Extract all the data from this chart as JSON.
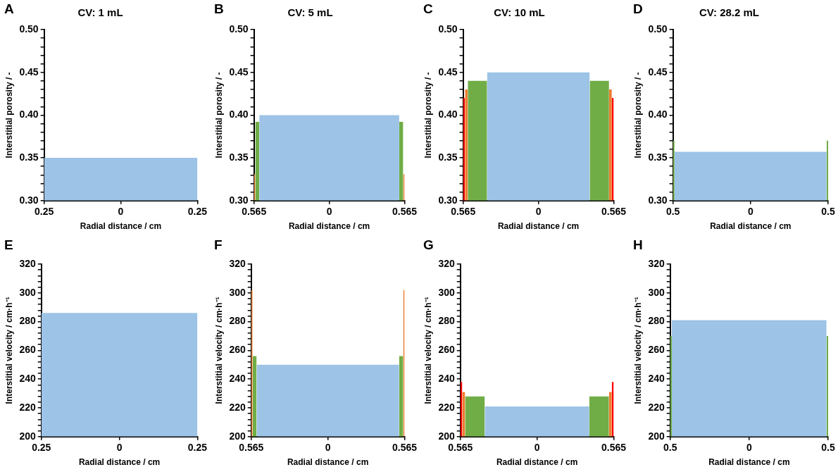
{
  "chart_data": [
    {
      "type": "area",
      "title": "CV: 1 mL",
      "annotations": [
        "A"
      ],
      "xlabel": "Radial distance / cm",
      "ylabel": "Interstitial porosity / -",
      "xlim": [
        -0.25,
        0.25
      ],
      "xticks": [
        {
          "value": -0.25,
          "label": "0.25"
        },
        0,
        0.25
      ],
      "ylim": [
        0.3,
        0.5
      ],
      "yticks": [
        {
          "value": 0.3,
          "label": "0.30"
        },
        {
          "value": 0.31,
          "label": null
        },
        {
          "value": 0.32,
          "label": null
        },
        {
          "value": 0.33,
          "label": null
        },
        {
          "value": 0.34,
          "label": null
        },
        0.35,
        {
          "value": 0.36,
          "label": null
        },
        {
          "value": 0.37,
          "label": null
        },
        {
          "value": 0.38,
          "label": null
        },
        {
          "value": 0.39,
          "label": null
        },
        {
          "value": 0.4,
          "label": "0.40"
        },
        {
          "value": 0.41,
          "label": null
        },
        {
          "value": 0.42,
          "label": null
        },
        {
          "value": 0.43,
          "label": null
        },
        {
          "value": 0.44,
          "label": null
        },
        0.45,
        {
          "value": 0.46,
          "label": null
        },
        {
          "value": 0.47,
          "label": null
        },
        {
          "value": 0.48,
          "label": null
        },
        {
          "value": 0.49,
          "label": null
        },
        {
          "value": 0.5,
          "label": "0.50"
        }
      ],
      "series": [
        {
          "color": "#9dc3e6",
          "x": [
            -0.25,
            0.25
          ],
          "values": [
            0.35,
            0.35
          ]
        }
      ]
    },
    {
      "type": "area",
      "title": "CV: 5 mL",
      "annotations": [
        "B"
      ],
      "xlabel": "Radial distance / cm",
      "ylabel": "Interstitial porosity / -",
      "xlim": [
        -0.565,
        0.565
      ],
      "xticks": [
        {
          "value": -0.565,
          "label": "0.565"
        },
        0,
        0.565
      ],
      "ylim": [
        0.3,
        0.5
      ],
      "yticks": [
        {
          "value": 0.3,
          "label": "0.30"
        },
        {
          "value": 0.31,
          "label": null
        },
        {
          "value": 0.32,
          "label": null
        },
        {
          "value": 0.33,
          "label": null
        },
        {
          "value": 0.34,
          "label": null
        },
        0.35,
        {
          "value": 0.36,
          "label": null
        },
        {
          "value": 0.37,
          "label": null
        },
        {
          "value": 0.38,
          "label": null
        },
        {
          "value": 0.39,
          "label": null
        },
        {
          "value": 0.4,
          "label": "0.40"
        },
        {
          "value": 0.41,
          "label": null
        },
        {
          "value": 0.42,
          "label": null
        },
        {
          "value": 0.43,
          "label": null
        },
        {
          "value": 0.44,
          "label": null
        },
        0.45,
        {
          "value": 0.46,
          "label": null
        },
        {
          "value": 0.47,
          "label": null
        },
        {
          "value": 0.48,
          "label": null
        },
        {
          "value": 0.49,
          "label": null
        },
        {
          "value": 0.5,
          "label": "0.50"
        }
      ],
      "series": [
        {
          "color": "#ed7d31",
          "x": [
            -0.565,
            -0.555,
            0,
            0.555,
            0.565
          ],
          "values": [
            0.331,
            0.331,
            null,
            0.331,
            0.331
          ]
        },
        {
          "color": "#70ad47",
          "x": [
            -0.555,
            -0.525,
            0,
            0.525,
            0.555
          ],
          "values": [
            0.392,
            0.392,
            null,
            0.392,
            0.392
          ]
        },
        {
          "color": "#9dc3e6",
          "x": [
            -0.525,
            0.525
          ],
          "values": [
            0.4,
            0.4
          ]
        }
      ]
    },
    {
      "type": "area",
      "title": "CV: 10 mL",
      "annotations": [
        "C"
      ],
      "xlabel": "Radial distance / cm",
      "ylabel": "Interstitial porosity / -",
      "xlim": [
        -0.565,
        0.565
      ],
      "xticks": [
        {
          "value": -0.565,
          "label": "0.565"
        },
        0,
        0.565
      ],
      "ylim": [
        0.3,
        0.5
      ],
      "yticks": [
        {
          "value": 0.3,
          "label": "0.30"
        },
        {
          "value": 0.31,
          "label": null
        },
        {
          "value": 0.32,
          "label": null
        },
        {
          "value": 0.33,
          "label": null
        },
        {
          "value": 0.34,
          "label": null
        },
        0.35,
        {
          "value": 0.36,
          "label": null
        },
        {
          "value": 0.37,
          "label": null
        },
        {
          "value": 0.38,
          "label": null
        },
        {
          "value": 0.39,
          "label": null
        },
        {
          "value": 0.4,
          "label": "0.40"
        },
        {
          "value": 0.41,
          "label": null
        },
        {
          "value": 0.42,
          "label": null
        },
        {
          "value": 0.43,
          "label": null
        },
        {
          "value": 0.44,
          "label": null
        },
        0.45,
        {
          "value": 0.46,
          "label": null
        },
        {
          "value": 0.47,
          "label": null
        },
        {
          "value": 0.48,
          "label": null
        },
        {
          "value": 0.49,
          "label": null
        },
        {
          "value": 0.5,
          "label": "0.50"
        }
      ],
      "series": [
        {
          "color": "#ff0000",
          "x": [
            -0.565,
            -0.551,
            0,
            0.551,
            0.565
          ],
          "values": [
            0.42,
            0.42,
            null,
            0.42,
            0.42
          ]
        },
        {
          "color": "#ed7d31",
          "x": [
            -0.551,
            -0.53,
            0,
            0.53,
            0.551
          ],
          "values": [
            0.43,
            0.43,
            null,
            0.43,
            0.43
          ]
        },
        {
          "color": "#70ad47",
          "x": [
            -0.53,
            -0.385,
            0,
            0.385,
            0.53
          ],
          "values": [
            0.44,
            0.44,
            null,
            0.44,
            0.44
          ]
        },
        {
          "color": "#9dc3e6",
          "x": [
            -0.385,
            0.385
          ],
          "values": [
            0.45,
            0.45
          ]
        }
      ]
    },
    {
      "type": "area",
      "title": "CV: 28.2 mL",
      "annotations": [
        "D"
      ],
      "xlabel": "Radial distance / cm",
      "ylabel": "Interstitial porosity / -",
      "xlim": [
        -0.5,
        0.5
      ],
      "xticks": [
        {
          "value": -0.5,
          "label": "0.5"
        },
        0,
        0.5
      ],
      "ylim": [
        0.3,
        0.5
      ],
      "yticks": [
        {
          "value": 0.3,
          "label": "0.30"
        },
        {
          "value": 0.31,
          "label": null
        },
        {
          "value": 0.32,
          "label": null
        },
        {
          "value": 0.33,
          "label": null
        },
        {
          "value": 0.34,
          "label": null
        },
        0.35,
        {
          "value": 0.36,
          "label": null
        },
        {
          "value": 0.37,
          "label": null
        },
        {
          "value": 0.38,
          "label": null
        },
        {
          "value": 0.39,
          "label": null
        },
        {
          "value": 0.4,
          "label": "0.40"
        },
        {
          "value": 0.41,
          "label": null
        },
        {
          "value": 0.42,
          "label": null
        },
        {
          "value": 0.43,
          "label": null
        },
        {
          "value": 0.44,
          "label": null
        },
        0.45,
        {
          "value": 0.46,
          "label": null
        },
        {
          "value": 0.47,
          "label": null
        },
        {
          "value": 0.48,
          "label": null
        },
        {
          "value": 0.49,
          "label": null
        },
        {
          "value": 0.5,
          "label": "0.50"
        }
      ],
      "series": [
        {
          "color": "#70ad47",
          "x": [
            -0.5,
            -0.49,
            0,
            0.49,
            0.5
          ],
          "values": [
            0.37,
            0.37,
            null,
            0.37,
            0.37
          ]
        },
        {
          "color": "#9dc3e6",
          "x": [
            -0.49,
            0.49
          ],
          "values": [
            0.357,
            0.357
          ]
        }
      ]
    },
    {
      "type": "area",
      "annotations": [
        "E"
      ],
      "xlabel": "Radial distance / cm",
      "ylabel": "Interstitial velocity / cm·h⁻¹",
      "xlim": [
        -0.25,
        0.25
      ],
      "xticks": [
        {
          "value": -0.25,
          "label": "0.25"
        },
        0,
        0.25
      ],
      "ylim": [
        200,
        320
      ],
      "yticks": [
        200,
        {
          "value": 204,
          "label": null
        },
        {
          "value": 208,
          "label": null
        },
        {
          "value": 212,
          "label": null
        },
        {
          "value": 216,
          "label": null
        },
        220,
        {
          "value": 224,
          "label": null
        },
        {
          "value": 228,
          "label": null
        },
        {
          "value": 232,
          "label": null
        },
        {
          "value": 236,
          "label": null
        },
        240,
        {
          "value": 244,
          "label": null
        },
        {
          "value": 248,
          "label": null
        },
        {
          "value": 252,
          "label": null
        },
        {
          "value": 256,
          "label": null
        },
        260,
        {
          "value": 264,
          "label": null
        },
        {
          "value": 268,
          "label": null
        },
        {
          "value": 272,
          "label": null
        },
        {
          "value": 276,
          "label": null
        },
        280,
        {
          "value": 284,
          "label": null
        },
        {
          "value": 288,
          "label": null
        },
        {
          "value": 292,
          "label": null
        },
        {
          "value": 296,
          "label": null
        },
        300,
        {
          "value": 304,
          "label": null
        },
        {
          "value": 308,
          "label": null
        },
        {
          "value": 312,
          "label": null
        },
        {
          "value": 316,
          "label": null
        },
        320
      ],
      "series": [
        {
          "color": "#9dc3e6",
          "x": [
            -0.25,
            0.25
          ],
          "values": [
            286,
            286
          ]
        }
      ]
    },
    {
      "type": "area",
      "annotations": [
        "F"
      ],
      "xlabel": "Radial distance / cm",
      "ylabel": "Interstitial velocity / cm·h⁻¹",
      "xlim": [
        -0.565,
        0.565
      ],
      "xticks": [
        {
          "value": -0.565,
          "label": "0.565"
        },
        0,
        0.565
      ],
      "ylim": [
        200,
        320
      ],
      "yticks": [
        200,
        {
          "value": 204,
          "label": null
        },
        {
          "value": 208,
          "label": null
        },
        {
          "value": 212,
          "label": null
        },
        {
          "value": 216,
          "label": null
        },
        220,
        {
          "value": 224,
          "label": null
        },
        {
          "value": 228,
          "label": null
        },
        {
          "value": 232,
          "label": null
        },
        {
          "value": 236,
          "label": null
        },
        240,
        {
          "value": 244,
          "label": null
        },
        {
          "value": 248,
          "label": null
        },
        {
          "value": 252,
          "label": null
        },
        {
          "value": 256,
          "label": null
        },
        260,
        {
          "value": 264,
          "label": null
        },
        {
          "value": 268,
          "label": null
        },
        {
          "value": 272,
          "label": null
        },
        {
          "value": 276,
          "label": null
        },
        280,
        {
          "value": 284,
          "label": null
        },
        {
          "value": 288,
          "label": null
        },
        {
          "value": 292,
          "label": null
        },
        {
          "value": 296,
          "label": null
        },
        300,
        {
          "value": 304,
          "label": null
        },
        {
          "value": 308,
          "label": null
        },
        {
          "value": 312,
          "label": null
        },
        {
          "value": 316,
          "label": null
        },
        320
      ],
      "series": [
        {
          "color": "#ed7d31",
          "x": [
            -0.565,
            -0.555,
            0,
            0.555,
            0.565
          ],
          "values": [
            302,
            302,
            null,
            302,
            302
          ]
        },
        {
          "color": "#70ad47",
          "x": [
            -0.555,
            -0.525,
            0,
            0.525,
            0.555
          ],
          "values": [
            256,
            256,
            null,
            256,
            256
          ]
        },
        {
          "color": "#9dc3e6",
          "x": [
            -0.525,
            0.525
          ],
          "values": [
            250,
            250
          ]
        }
      ]
    },
    {
      "type": "area",
      "annotations": [
        "G"
      ],
      "xlabel": "Radial distance / cm",
      "ylabel": "Interstitial velocity / cm·h⁻¹",
      "xlim": [
        -0.565,
        0.565
      ],
      "xticks": [
        {
          "value": -0.565,
          "label": "0.565"
        },
        0,
        0.565
      ],
      "ylim": [
        200,
        320
      ],
      "yticks": [
        200,
        {
          "value": 204,
          "label": null
        },
        {
          "value": 208,
          "label": null
        },
        {
          "value": 212,
          "label": null
        },
        {
          "value": 216,
          "label": null
        },
        220,
        {
          "value": 224,
          "label": null
        },
        {
          "value": 228,
          "label": null
        },
        {
          "value": 232,
          "label": null
        },
        {
          "value": 236,
          "label": null
        },
        240,
        {
          "value": 244,
          "label": null
        },
        {
          "value": 248,
          "label": null
        },
        {
          "value": 252,
          "label": null
        },
        {
          "value": 256,
          "label": null
        },
        260,
        {
          "value": 264,
          "label": null
        },
        {
          "value": 268,
          "label": null
        },
        {
          "value": 272,
          "label": null
        },
        {
          "value": 276,
          "label": null
        },
        280,
        {
          "value": 284,
          "label": null
        },
        {
          "value": 288,
          "label": null
        },
        {
          "value": 292,
          "label": null
        },
        {
          "value": 296,
          "label": null
        },
        300,
        {
          "value": 304,
          "label": null
        },
        {
          "value": 308,
          "label": null
        },
        {
          "value": 312,
          "label": null
        },
        {
          "value": 316,
          "label": null
        },
        320
      ],
      "series": [
        {
          "color": "#ff0000",
          "x": [
            -0.565,
            -0.551,
            0,
            0.551,
            0.565
          ],
          "values": [
            238,
            238,
            null,
            238,
            238
          ]
        },
        {
          "color": "#ed7d31",
          "x": [
            -0.551,
            -0.53,
            0,
            0.53,
            0.551
          ],
          "values": [
            231,
            231,
            null,
            231,
            231
          ]
        },
        {
          "color": "#70ad47",
          "x": [
            -0.53,
            -0.385,
            0,
            0.385,
            0.53
          ],
          "values": [
            228,
            228,
            null,
            228,
            228
          ]
        },
        {
          "color": "#9dc3e6",
          "x": [
            -0.385,
            0.385
          ],
          "values": [
            221,
            221
          ]
        }
      ]
    },
    {
      "type": "area",
      "annotations": [
        "H"
      ],
      "xlabel": "Radial distance / cm",
      "ylabel": "Interstitial velocity / cm·h⁻¹",
      "xlim": [
        -0.5,
        0.5
      ],
      "xticks": [
        {
          "value": -0.5,
          "label": "0.5"
        },
        0,
        0.5
      ],
      "ylim": [
        200,
        320
      ],
      "yticks": [
        200,
        {
          "value": 204,
          "label": null
        },
        {
          "value": 208,
          "label": null
        },
        {
          "value": 212,
          "label": null
        },
        {
          "value": 216,
          "label": null
        },
        220,
        {
          "value": 224,
          "label": null
        },
        {
          "value": 228,
          "label": null
        },
        {
          "value": 232,
          "label": null
        },
        {
          "value": 236,
          "label": null
        },
        240,
        {
          "value": 244,
          "label": null
        },
        {
          "value": 248,
          "label": null
        },
        {
          "value": 252,
          "label": null
        },
        {
          "value": 256,
          "label": null
        },
        260,
        {
          "value": 264,
          "label": null
        },
        {
          "value": 268,
          "label": null
        },
        {
          "value": 272,
          "label": null
        },
        {
          "value": 276,
          "label": null
        },
        280,
        {
          "value": 284,
          "label": null
        },
        {
          "value": 288,
          "label": null
        },
        {
          "value": 292,
          "label": null
        },
        {
          "value": 296,
          "label": null
        },
        300,
        {
          "value": 304,
          "label": null
        },
        {
          "value": 308,
          "label": null
        },
        {
          "value": 312,
          "label": null
        },
        {
          "value": 316,
          "label": null
        },
        320
      ],
      "series": [
        {
          "color": "#70ad47",
          "x": [
            -0.5,
            -0.49,
            0,
            0.49,
            0.5
          ],
          "values": [
            270,
            270,
            null,
            270,
            270
          ]
        },
        {
          "color": "#9dc3e6",
          "x": [
            -0.49,
            0.49
          ],
          "values": [
            281,
            281
          ]
        }
      ]
    }
  ]
}
